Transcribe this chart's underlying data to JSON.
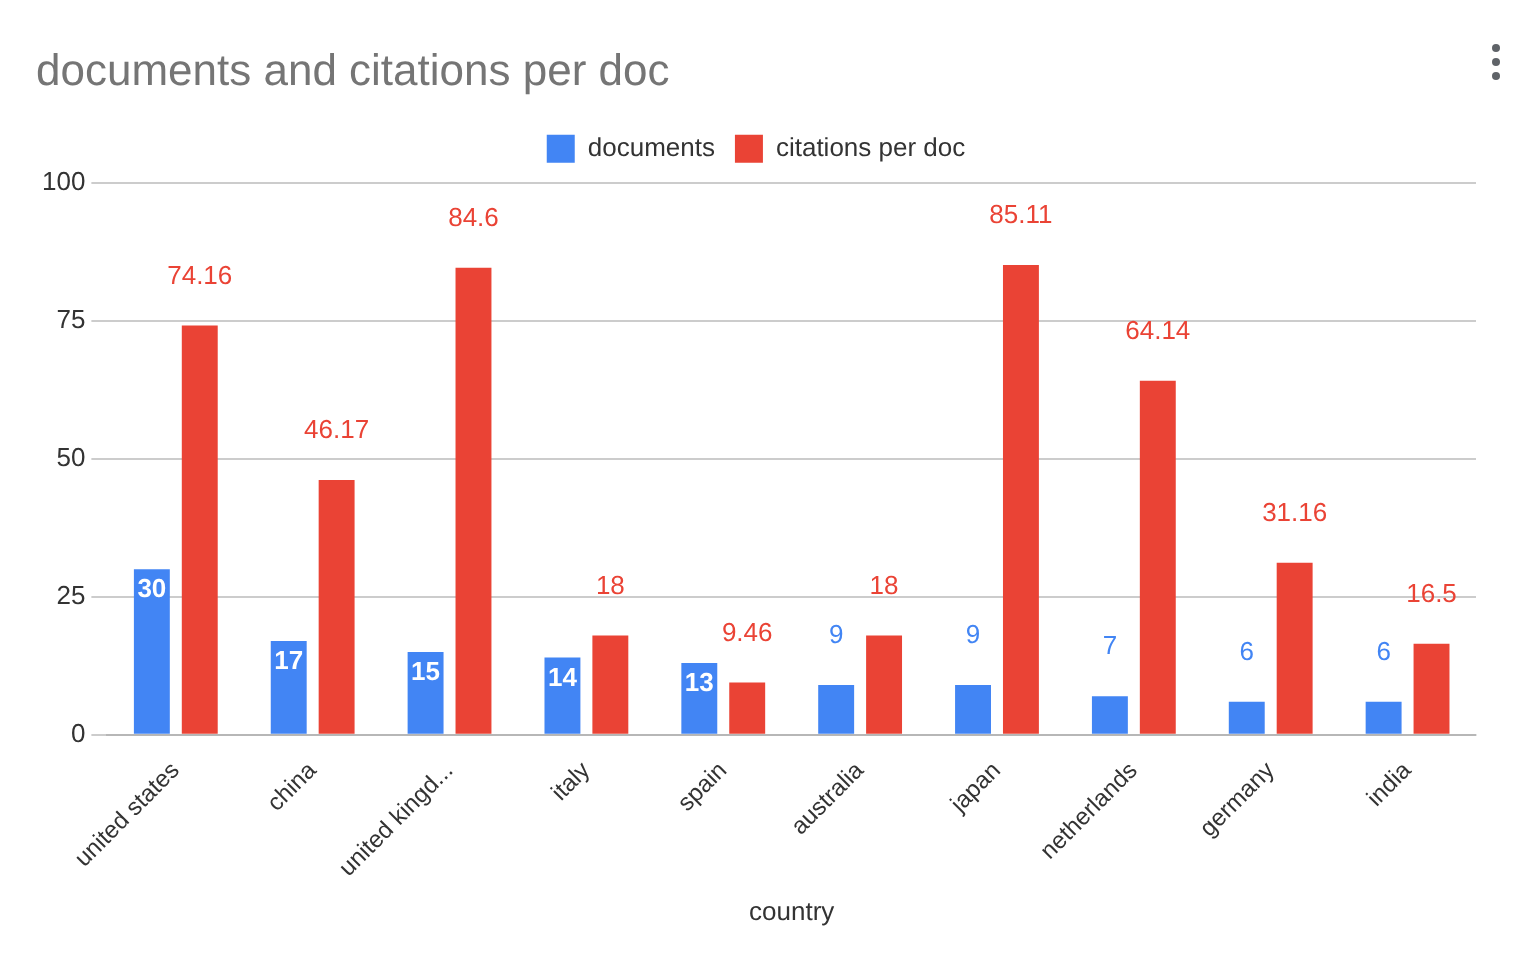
{
  "chart_data": {
    "type": "bar",
    "title": "documents and citations per doc",
    "xlabel": "country",
    "categories": [
      "united states",
      "china",
      "united kingd...",
      "italy",
      "spain",
      "australia",
      "japan",
      "netherlands",
      "germany",
      "india"
    ],
    "series": [
      {
        "name": "documents",
        "color": "#4285f4",
        "values": [
          30,
          17,
          15,
          14,
          13,
          9,
          9,
          7,
          6,
          6
        ]
      },
      {
        "name": "citations per doc",
        "color": "#ea4335",
        "values": [
          74.16,
          46.17,
          84.6,
          18,
          9.46,
          18,
          85.11,
          64.14,
          31.16,
          16.5
        ]
      }
    ],
    "ylim": [
      0,
      100
    ],
    "yticks": [
      0,
      25,
      50,
      75,
      100
    ],
    "grid": "y",
    "legend": "top",
    "data_labels": true
  }
}
